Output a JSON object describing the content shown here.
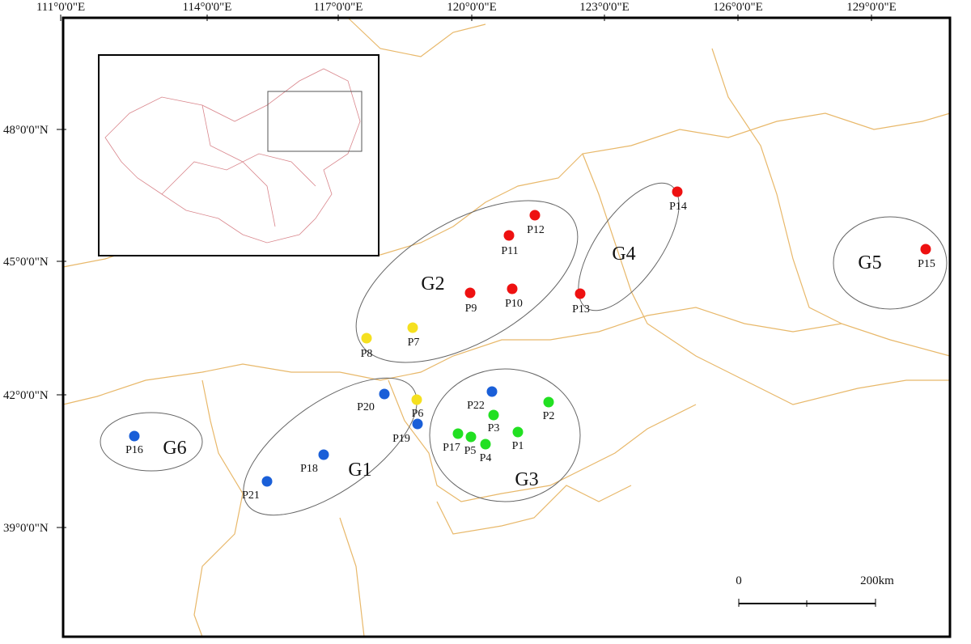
{
  "map": {
    "longitude_labels": [
      "111°0'0\"E",
      "114°0'0\"E",
      "117°0'0\"E",
      "120°0'0\"E",
      "123°0'0\"E",
      "126°0'0\"E",
      "129°0'0\"E"
    ],
    "latitude_labels": [
      "48°0'0\"N",
      "45°0'0\"N",
      "42°0'0\"N",
      "39°0'0\"N"
    ],
    "groups": [
      {
        "label": "G1"
      },
      {
        "label": "G2"
      },
      {
        "label": "G3"
      },
      {
        "label": "G4"
      },
      {
        "label": "G5"
      },
      {
        "label": "G6"
      }
    ],
    "points": [
      {
        "label": "P1",
        "color": "#22e022"
      },
      {
        "label": "P2",
        "color": "#22e022"
      },
      {
        "label": "P3",
        "color": "#22e022"
      },
      {
        "label": "P4",
        "color": "#22e022"
      },
      {
        "label": "P5",
        "color": "#22e022"
      },
      {
        "label": "P6",
        "color": "#f5e020"
      },
      {
        "label": "P7",
        "color": "#f5e020"
      },
      {
        "label": "P8",
        "color": "#f5e020"
      },
      {
        "label": "P9",
        "color": "#ee1111"
      },
      {
        "label": "P10",
        "color": "#ee1111"
      },
      {
        "label": "P11",
        "color": "#ee1111"
      },
      {
        "label": "P12",
        "color": "#ee1111"
      },
      {
        "label": "P13",
        "color": "#ee1111"
      },
      {
        "label": "P14",
        "color": "#ee1111"
      },
      {
        "label": "P15",
        "color": "#ee1111"
      },
      {
        "label": "P16",
        "color": "#1a5fd8"
      },
      {
        "label": "P17",
        "color": "#22e022"
      },
      {
        "label": "P18",
        "color": "#1a5fd8"
      },
      {
        "label": "P19",
        "color": "#1a5fd8"
      },
      {
        "label": "P20",
        "color": "#1a5fd8"
      },
      {
        "label": "P21",
        "color": "#1a5fd8"
      },
      {
        "label": "P22",
        "color": "#1a5fd8"
      }
    ],
    "scale_bar": {
      "start": "0",
      "end": "200km"
    }
  }
}
